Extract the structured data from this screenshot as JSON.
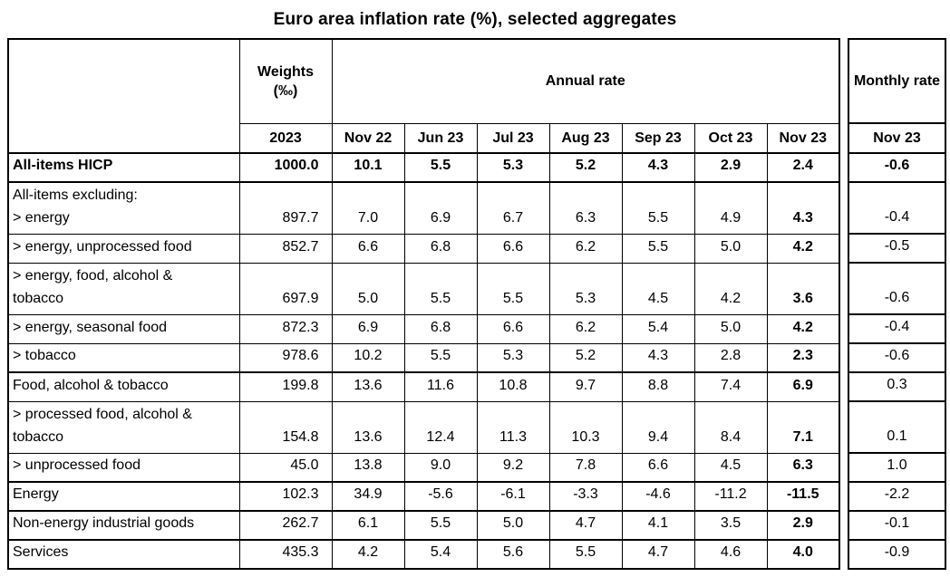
{
  "title": "Euro area inflation rate (%), selected aggregates",
  "main_table": {
    "corner_label": "",
    "weights_header": "Weights\n(‰)",
    "weights_year": "2023",
    "annual_rate_header": "Annual rate",
    "month_headers": [
      "Nov 22",
      "Jun 23",
      "Jul 23",
      "Aug 23",
      "Sep 23",
      "Oct 23",
      "Nov 23"
    ],
    "rows": [
      {
        "label": "All-items HICP",
        "bold": true,
        "weight": "1000.0",
        "annual": [
          "10.1",
          "5.5",
          "5.3",
          "5.2",
          "4.3",
          "2.9",
          "2.4"
        ],
        "monthly": "-0.6"
      },
      {
        "label": "All-items excluding:\n> energy",
        "bold": false,
        "weight": "897.7",
        "annual": [
          "7.0",
          "6.9",
          "6.7",
          "6.3",
          "5.5",
          "4.9",
          "4.3"
        ],
        "monthly": "-0.4"
      },
      {
        "label": "> energy, unprocessed food",
        "bold": false,
        "weight": "852.7",
        "annual": [
          "6.6",
          "6.8",
          "6.6",
          "6.2",
          "5.5",
          "5.0",
          "4.2"
        ],
        "monthly": "-0.5"
      },
      {
        "label": "> energy, food, alcohol &\ntobacco",
        "bold": false,
        "weight": "697.9",
        "annual": [
          "5.0",
          "5.5",
          "5.5",
          "5.3",
          "4.5",
          "4.2",
          "3.6"
        ],
        "monthly": "-0.6"
      },
      {
        "label": "> energy, seasonal food",
        "bold": false,
        "weight": "872.3",
        "annual": [
          "6.9",
          "6.8",
          "6.6",
          "6.2",
          "5.4",
          "5.0",
          "4.2"
        ],
        "monthly": "-0.4"
      },
      {
        "label": "> tobacco",
        "bold": false,
        "weight": "978.6",
        "annual": [
          "10.2",
          "5.5",
          "5.3",
          "5.2",
          "4.3",
          "2.8",
          "2.3"
        ],
        "monthly": "-0.6"
      },
      {
        "label": "Food, alcohol & tobacco",
        "bold": false,
        "weight": "199.8",
        "annual": [
          "13.6",
          "11.6",
          "10.8",
          "9.7",
          "8.8",
          "7.4",
          "6.9"
        ],
        "monthly": "0.3"
      },
      {
        "label": "> processed food, alcohol &\ntobacco",
        "bold": false,
        "weight": "154.8",
        "annual": [
          "13.6",
          "12.4",
          "11.3",
          "10.3",
          "9.4",
          "8.4",
          "7.1"
        ],
        "monthly": "0.1"
      },
      {
        "label": "> unprocessed food",
        "bold": false,
        "weight": "45.0",
        "annual": [
          "13.8",
          "9.0",
          "9.2",
          "7.8",
          "6.6",
          "4.5",
          "6.3"
        ],
        "monthly": "1.0"
      },
      {
        "label": "Energy",
        "bold": false,
        "weight": "102.3",
        "annual": [
          "34.9",
          "-5.6",
          "-6.1",
          "-3.3",
          "-4.6",
          "-11.2",
          "-11.5"
        ],
        "monthly": "-2.2"
      },
      {
        "label": "Non-energy industrial goods",
        "bold": false,
        "weight": "262.7",
        "annual": [
          "6.1",
          "5.5",
          "5.0",
          "4.7",
          "4.1",
          "3.5",
          "2.9"
        ],
        "monthly": "-0.1"
      },
      {
        "label": "Services",
        "bold": false,
        "weight": "435.3",
        "annual": [
          "4.2",
          "5.4",
          "5.6",
          "5.5",
          "4.7",
          "4.6",
          "4.0"
        ],
        "monthly": "-0.9"
      }
    ]
  },
  "monthly_table": {
    "header": "Monthly rate",
    "month_header": "Nov 23"
  }
}
